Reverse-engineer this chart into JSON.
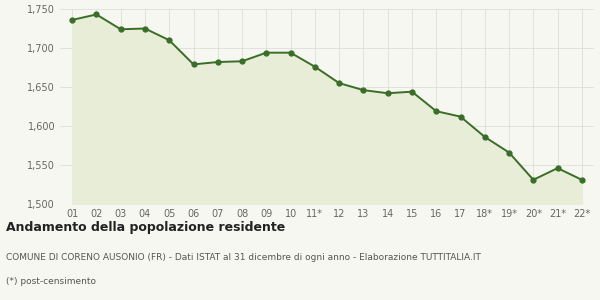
{
  "x_labels": [
    "01",
    "02",
    "03",
    "04",
    "05",
    "06",
    "07",
    "08",
    "09",
    "10",
    "11*",
    "12",
    "13",
    "14",
    "15",
    "16",
    "17",
    "18*",
    "19*",
    "20*",
    "21*",
    "22*"
  ],
  "y_values": [
    1736,
    1743,
    1724,
    1725,
    1710,
    1679,
    1682,
    1683,
    1694,
    1694,
    1676,
    1655,
    1646,
    1642,
    1644,
    1619,
    1612,
    1586,
    1566,
    1531,
    1546,
    1531
  ],
  "ylim": [
    1500,
    1750
  ],
  "yticks": [
    1500,
    1550,
    1600,
    1650,
    1700,
    1750
  ],
  "line_color": "#3a6e28",
  "fill_color": "#e8edd8",
  "marker": "o",
  "marker_size": 3.5,
  "line_width": 1.4,
  "title1": "Andamento della popolazione residente",
  "title2": "COMUNE DI CORENO AUSONIO (FR) - Dati ISTAT al 31 dicembre di ogni anno - Elaborazione TUTTITALIA.IT",
  "title3": "(*) post-censimento",
  "bg_color": "#f7f7f2",
  "plot_bg_color": "#f7f7f2",
  "grid_color": "#d8d8d8"
}
